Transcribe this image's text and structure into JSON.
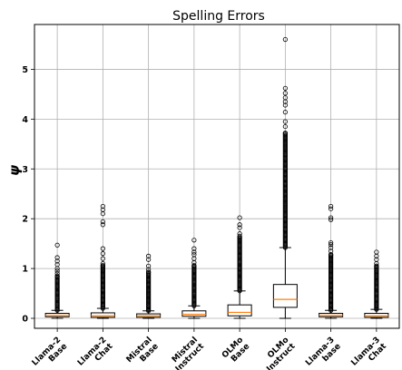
{
  "chart_data": {
    "type": "boxplot",
    "title": "Spelling Errors",
    "xlabel": "",
    "ylabel": "ψ",
    "ylim": [
      -0.2,
      5.9
    ],
    "yticks": [
      0,
      1,
      2,
      3,
      4,
      5
    ],
    "grid": true,
    "colors": {
      "box": "#000000",
      "median": "#ff7f0e",
      "grid": "#b0b0b0"
    },
    "categories": [
      [
        "Llama-2",
        "Base"
      ],
      [
        "Llama-2",
        "Chat"
      ],
      [
        "Mistral",
        "Base"
      ],
      [
        "Mistral",
        "Instruct"
      ],
      [
        "OLMo",
        "Base"
      ],
      [
        "OLMo",
        "Instruct"
      ],
      [
        "Llama-3",
        "base"
      ],
      [
        "Llama-3",
        "Chat"
      ]
    ],
    "boxes": [
      {
        "whisker_low": 0.0,
        "q1": 0.03,
        "median": 0.06,
        "q3": 0.1,
        "whisker_high": 0.16,
        "outlier_max": 1.47,
        "outliers": [
          1.47,
          1.22,
          1.15,
          1.08,
          1.0,
          0.95,
          0.9,
          0.85
        ]
      },
      {
        "whisker_low": 0.0,
        "q1": 0.02,
        "median": 0.05,
        "q3": 0.11,
        "whisker_high": 0.2,
        "outlier_max": 2.25,
        "outliers": [
          2.25,
          2.18,
          2.1,
          1.94,
          1.88,
          1.4,
          1.3,
          1.2,
          1.1,
          1.06
        ]
      },
      {
        "whisker_low": 0.0,
        "q1": 0.02,
        "median": 0.05,
        "q3": 0.09,
        "whisker_high": 0.15,
        "outlier_max": 1.25,
        "outliers": [
          1.25,
          1.18,
          1.05,
          0.98,
          0.93
        ]
      },
      {
        "whisker_low": 0.0,
        "q1": 0.04,
        "median": 0.08,
        "q3": 0.15,
        "whisker_high": 0.25,
        "outlier_max": 1.57,
        "outliers": [
          1.57,
          1.4,
          1.33,
          1.28,
          1.2,
          1.12,
          1.06
        ]
      },
      {
        "whisker_low": 0.0,
        "q1": 0.05,
        "median": 0.12,
        "q3": 0.27,
        "whisker_high": 0.55,
        "outlier_max": 2.02,
        "outliers": [
          2.02,
          1.88,
          1.82,
          1.7,
          1.65,
          1.62
        ]
      },
      {
        "whisker_low": 0.0,
        "q1": 0.22,
        "median": 0.38,
        "q3": 0.68,
        "whisker_high": 1.42,
        "outlier_max": 5.6,
        "outliers": [
          5.6,
          4.62,
          4.52,
          4.43,
          4.35,
          4.28,
          4.14,
          3.95,
          3.85,
          3.72
        ]
      },
      {
        "whisker_low": 0.0,
        "q1": 0.03,
        "median": 0.06,
        "q3": 0.1,
        "whisker_high": 0.16,
        "outlier_max": 2.25,
        "outliers": [
          2.25,
          2.2,
          2.02,
          1.98,
          1.52,
          1.48,
          1.42,
          1.35,
          1.28
        ]
      },
      {
        "whisker_low": 0.0,
        "q1": 0.02,
        "median": 0.05,
        "q3": 0.1,
        "whisker_high": 0.18,
        "outlier_max": 1.33,
        "outliers": [
          1.33,
          1.25,
          1.18,
          1.1,
          1.05
        ]
      }
    ]
  }
}
